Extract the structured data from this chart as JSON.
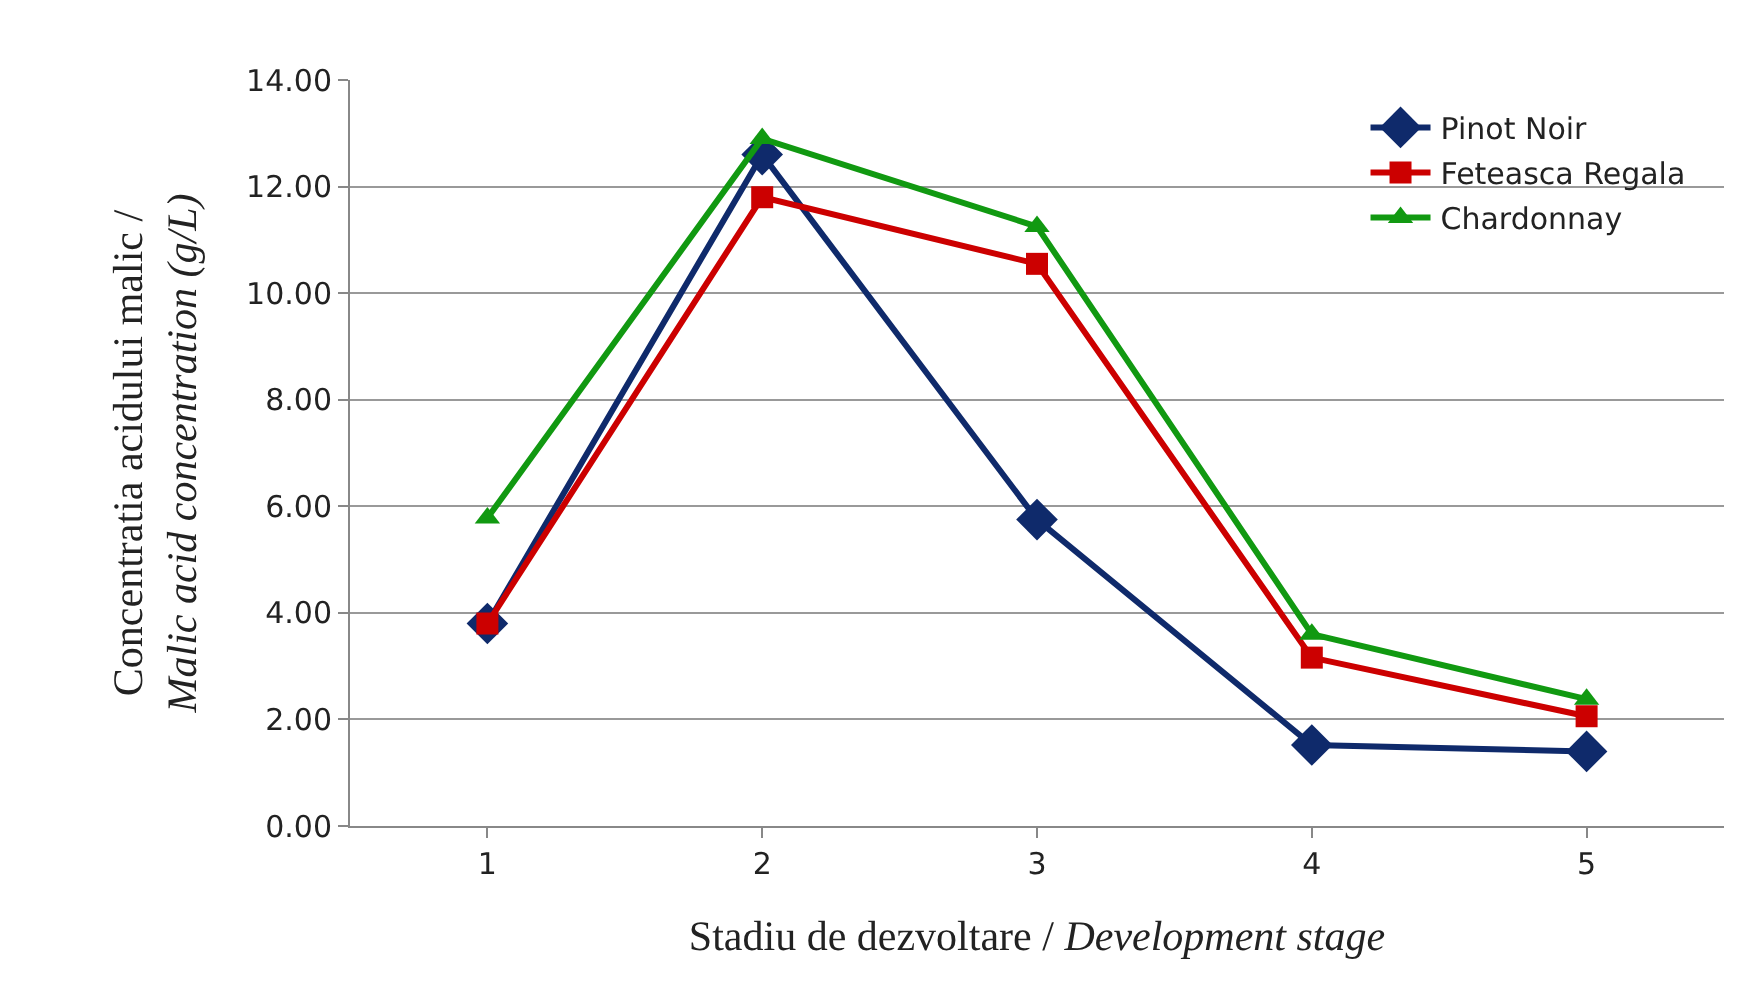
{
  "chart_data": {
    "type": "line",
    "xlabel": "Stadiu de dezvoltare / Development stage",
    "ylabel": "Concentratia acidului malic / Malic acid concentration (g/L)",
    "categories": [
      "1",
      "2",
      "3",
      "4",
      "5"
    ],
    "series": [
      {
        "name": "Pinot Noir",
        "color": "#0f2a6b",
        "marker": "diamond",
        "values": [
          3.8,
          12.6,
          5.75,
          1.52,
          1.4
        ]
      },
      {
        "name": "Feteasca Regala",
        "color": "#cc0000",
        "marker": "square",
        "values": [
          3.8,
          11.8,
          10.55,
          3.16,
          2.06
        ]
      },
      {
        "name": "Chardonnay",
        "color": "#119911",
        "marker": "triangle",
        "values": [
          5.78,
          12.9,
          11.25,
          3.6,
          2.38
        ]
      }
    ],
    "ylim": [
      0,
      14
    ],
    "yticks": [
      {
        "value": 0,
        "label": "0.00"
      },
      {
        "value": 2,
        "label": "2.00"
      },
      {
        "value": 4,
        "label": "4.00"
      },
      {
        "value": 6,
        "label": "6.00"
      },
      {
        "value": 8,
        "label": "8.00"
      },
      {
        "value": 10,
        "label": "10.00"
      },
      {
        "value": 12,
        "label": "12.00"
      },
      {
        "value": 14,
        "label": "14.00"
      }
    ],
    "grid": "y",
    "legend": "top right",
    "line_style": "solid"
  }
}
